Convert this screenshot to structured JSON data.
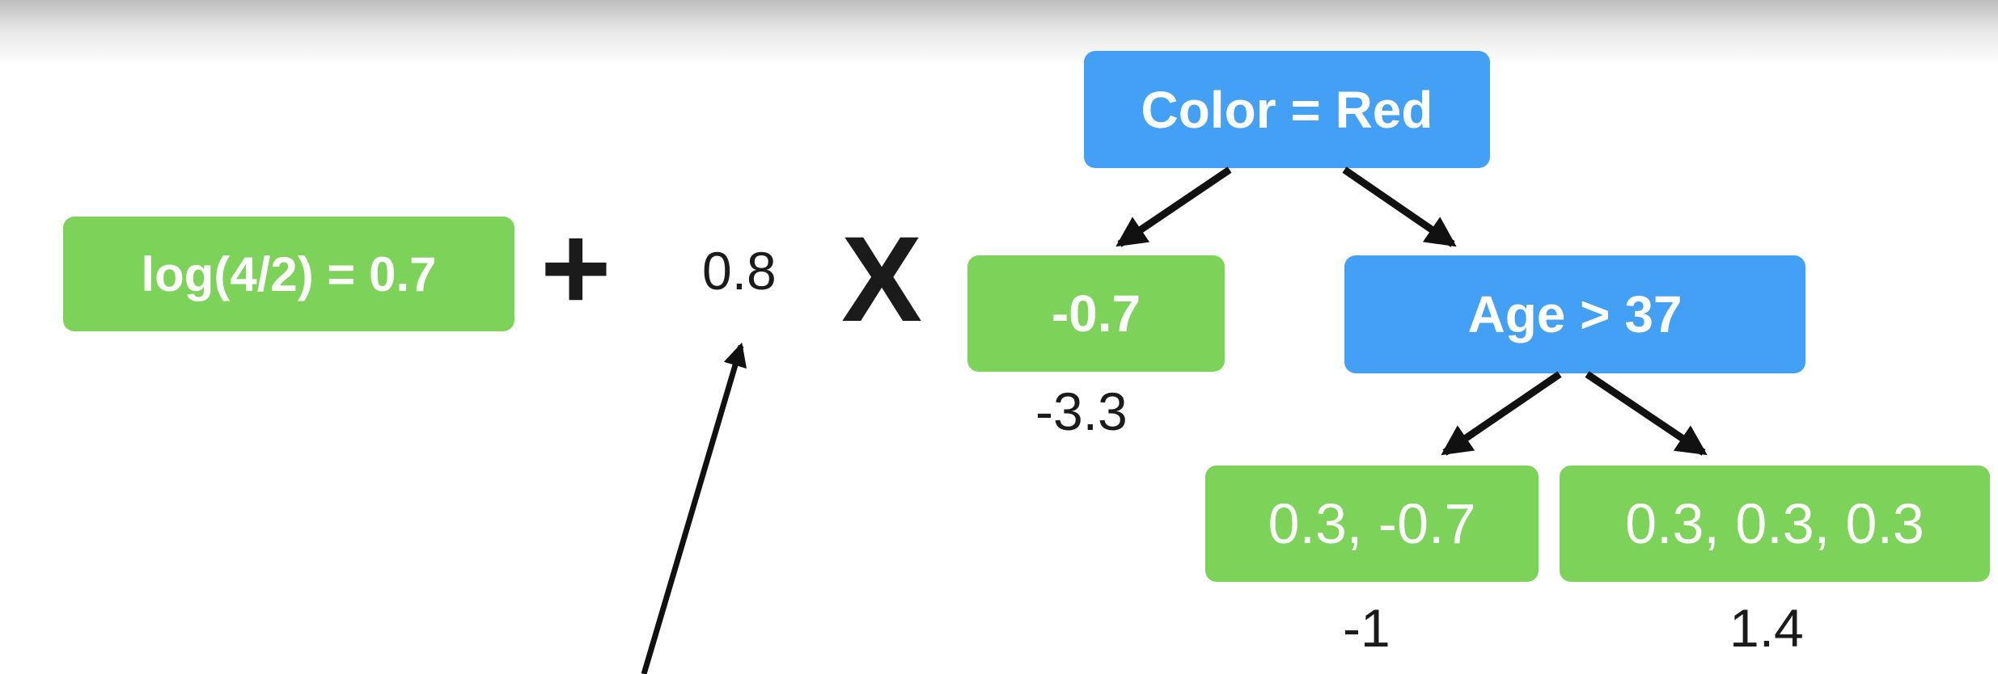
{
  "colors": {
    "leaf_box": "#7dd25a",
    "split_box": "#43a0f4",
    "box_text": "#ffffff",
    "arrow": "#111111"
  },
  "initial_prediction": {
    "label": "log(4/2) = 0.7"
  },
  "operators": {
    "plus": "+",
    "times": "X"
  },
  "learning_rate": {
    "value": "0.8"
  },
  "tree": {
    "root": {
      "label": "Color = Red"
    },
    "left_leaf": {
      "label": "-0.7",
      "output": "-3.3"
    },
    "split_node": {
      "label": "Age > 37"
    },
    "leaf_left_of_split": {
      "label": "0.3, -0.7",
      "output": "-1"
    },
    "leaf_right_of_split": {
      "label": "0.3, 0.3, 0.3",
      "output": "1.4"
    }
  }
}
